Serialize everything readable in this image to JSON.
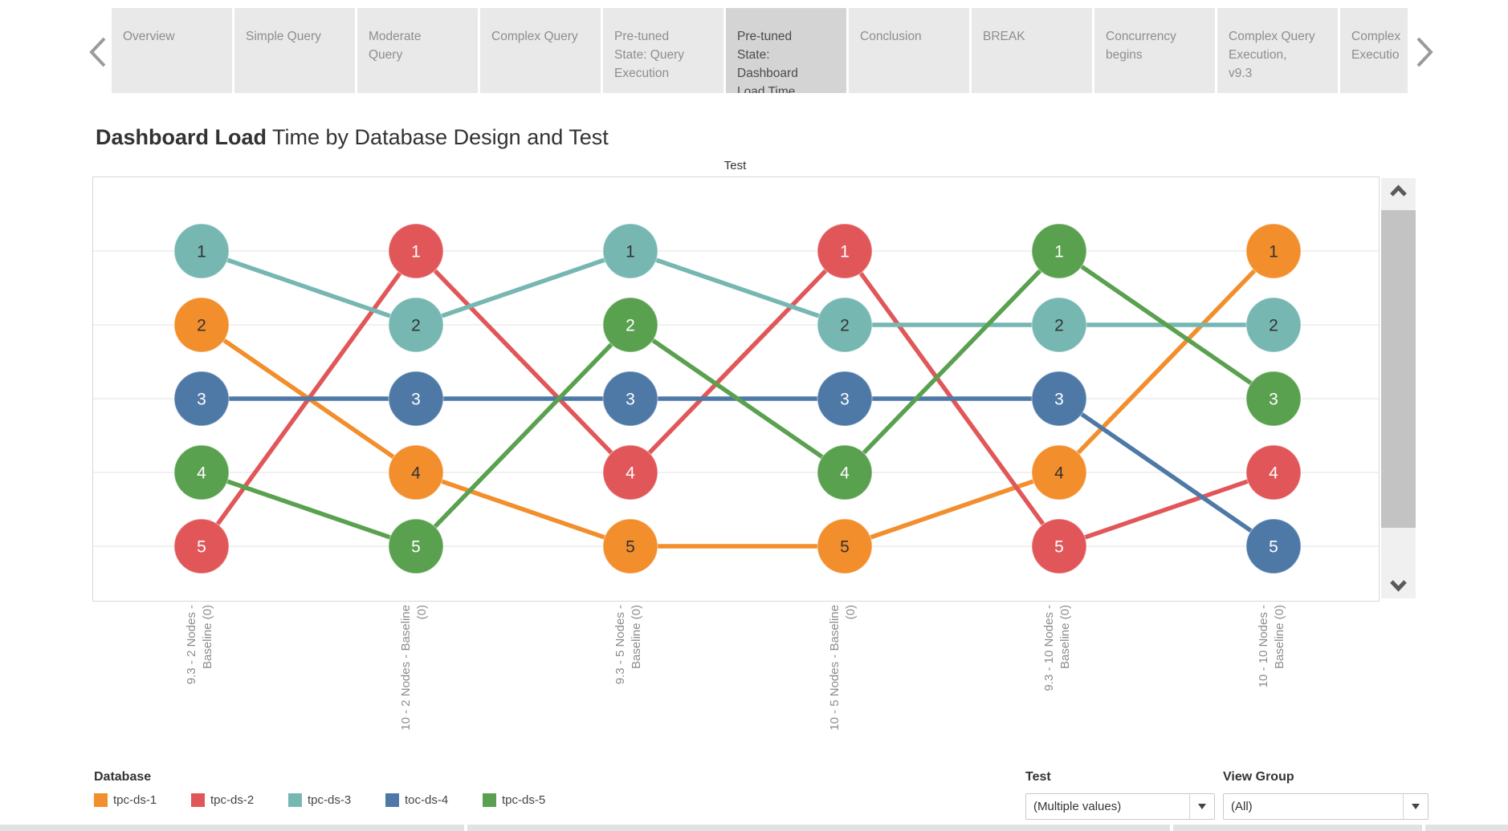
{
  "story_tabs": {
    "items": [
      {
        "label": "Overview",
        "selected": false
      },
      {
        "label": "Simple Query",
        "selected": false
      },
      {
        "label": "Moderate\nQuery",
        "selected": false
      },
      {
        "label": "Complex Query",
        "selected": false
      },
      {
        "label": "Pre-tuned\nState: Query\nExecution",
        "selected": false
      },
      {
        "label": "Pre-tuned\nState:\nDashboard\nLoad Time",
        "selected": true
      },
      {
        "label": "Conclusion",
        "selected": false
      },
      {
        "label": "BREAK",
        "selected": false
      },
      {
        "label": "Concurrency\nbegins",
        "selected": false
      },
      {
        "label": "Complex Query\nExecution,\nv9.3",
        "selected": false
      },
      {
        "label": "Complex\nExecutio",
        "selected": false
      }
    ]
  },
  "header": {
    "title_bold": "Dashboard Load",
    "title_regular": " Time by Database Design and Test"
  },
  "chart_data": {
    "type": "line",
    "subtype": "bump-rank-chart",
    "title": "Dashboard Load Time by Database Design and Test",
    "top_axis_label": "Test",
    "rank_axis": {
      "min": 1,
      "max": 5,
      "inverted": true
    },
    "grid": "horizontal",
    "legend_position": "bottom-left",
    "categories": [
      "9.3 - 2 Nodes -\nBaseline (0)",
      "10 - 2 Nodes - Baseline\n(0)",
      "9.3 - 5 Nodes -\nBaseline (0)",
      "10 - 5 Nodes - Baseline\n(0)",
      "9.3 - 10 Nodes -\nBaseline (0)",
      "10 - 10 Nodes -\nBaseline (0)"
    ],
    "series": [
      {
        "name": "tpc-ds-1",
        "color": "#f28e2b",
        "label_color": "#333333",
        "ranks": [
          2,
          4,
          5,
          5,
          4,
          1
        ]
      },
      {
        "name": "tpc-ds-2",
        "color": "#e15759",
        "label_color": "#ffffff",
        "ranks": [
          5,
          1,
          4,
          1,
          5,
          4
        ]
      },
      {
        "name": "tpc-ds-3",
        "color": "#76b7b2",
        "label_color": "#333333",
        "ranks": [
          1,
          2,
          1,
          2,
          2,
          2
        ]
      },
      {
        "name": "toc-ds-4",
        "color": "#4e79a7",
        "label_color": "#ffffff",
        "ranks": [
          3,
          3,
          3,
          3,
          3,
          5
        ]
      },
      {
        "name": "tpc-ds-5",
        "color": "#59a14f",
        "label_color": "#ffffff",
        "ranks": [
          4,
          5,
          2,
          4,
          1,
          3
        ]
      }
    ]
  },
  "legend": {
    "title": "Database"
  },
  "filters": {
    "test": {
      "label": "Test",
      "value": "(Multiple values)"
    },
    "view_group": {
      "label": "View Group",
      "value": "(All)"
    }
  }
}
